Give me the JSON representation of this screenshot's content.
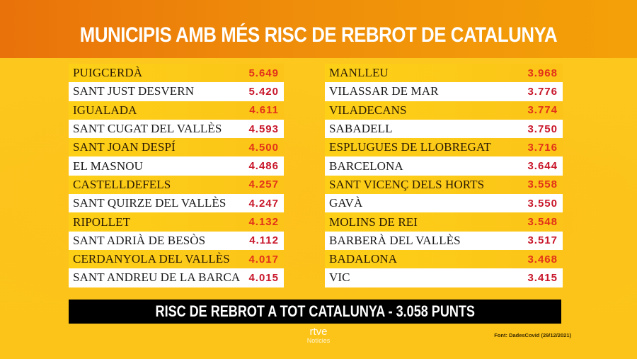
{
  "header": {
    "title": "MUNICIPIS AMB MÉS RISC DE REBROT DE CATALUNYA"
  },
  "left_column": [
    {
      "name": "PUIGCERDÀ",
      "value": "5.649"
    },
    {
      "name": "SANT JUST DESVERN",
      "value": "5.420"
    },
    {
      "name": "IGUALADA",
      "value": "4.611"
    },
    {
      "name": "SANT CUGAT DEL VALLÈS",
      "value": "4.593"
    },
    {
      "name": "SANT JOAN DESPÍ",
      "value": "4.500"
    },
    {
      "name": "EL MASNOU",
      "value": "4.486"
    },
    {
      "name": "CASTELLDEFELS",
      "value": "4.257"
    },
    {
      "name": "SANT QUIRZE DEL VALLÈS",
      "value": "4.247"
    },
    {
      "name": "RIPOLLET",
      "value": "4.132"
    },
    {
      "name": "SANT ADRIÀ DE BESÒS",
      "value": "4.112"
    },
    {
      "name": "CERDANYOLA DEL VALLÈS",
      "value": "4.017"
    },
    {
      "name": "SANT ANDREU DE LA BARCA",
      "value": "4.015"
    }
  ],
  "right_column": [
    {
      "name": "MANLLEU",
      "value": "3.968"
    },
    {
      "name": "VILASSAR DE MAR",
      "value": "3.776"
    },
    {
      "name": "VILADECANS",
      "value": "3.774"
    },
    {
      "name": "SABADELL",
      "value": "3.750"
    },
    {
      "name": "ESPLUGUES DE LLOBREGAT",
      "value": "3.716"
    },
    {
      "name": "BARCELONA",
      "value": "3.644"
    },
    {
      "name": "SANT VICENÇ DELS HORTS",
      "value": "3.558"
    },
    {
      "name": "GAVÀ",
      "value": "3.550"
    },
    {
      "name": "MOLINS DE REI",
      "value": "3.548"
    },
    {
      "name": "BARBERÀ DEL VALLÈS",
      "value": "3.517"
    },
    {
      "name": "BADALONA",
      "value": "3.468"
    },
    {
      "name": "VIC",
      "value": "3.415"
    }
  ],
  "summary": {
    "text": "RISC DE REBROT A TOT CATALUNYA - 3.058 PUNTS"
  },
  "logo": {
    "brand": "rtve",
    "sub": "Notícies"
  },
  "source": {
    "text": "Font: DadesCovid (29/12/2021)"
  },
  "colors": {
    "header_orange": "#e9720a",
    "background_yellow": "#fdc51c",
    "value_red": "#c8162a",
    "summary_bg": "#000000"
  }
}
